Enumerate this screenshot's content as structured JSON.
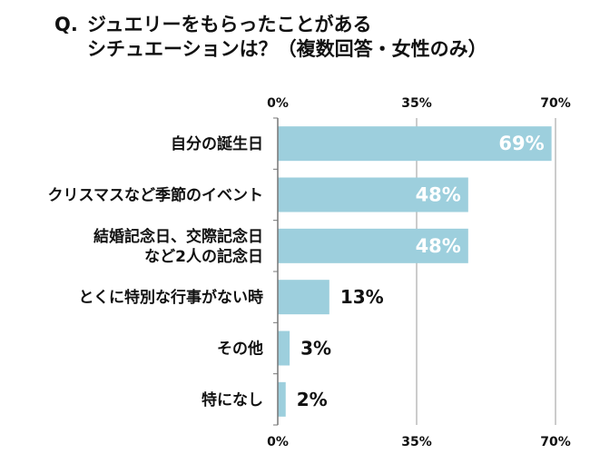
{
  "title": {
    "prefix": "Q.",
    "line1": "ジュエリーをもらったことがある",
    "line2": "シチュエーションは？（複数回答・女性のみ）"
  },
  "colors": {
    "bar": "#9dcfdd",
    "axis": "#777777",
    "grid": "#999999"
  },
  "chart_data": {
    "type": "bar",
    "orientation": "horizontal",
    "categories": [
      [
        "自分の誕生日"
      ],
      [
        "クリスマスなど季節のイベント"
      ],
      [
        "結婚記念日、交際記念日",
        "など2人の記念日"
      ],
      [
        "とくに特別な行事がない時"
      ],
      [
        "その他"
      ],
      [
        "特になし"
      ]
    ],
    "values": [
      69,
      48,
      48,
      13,
      3,
      2
    ],
    "value_labels": [
      "69%",
      "48%",
      "48%",
      "13%",
      "3%",
      "2%"
    ],
    "xlim": [
      0,
      70
    ],
    "ticks": [
      0,
      35,
      70
    ],
    "tick_labels": [
      "0%",
      "35%",
      "70%"
    ],
    "tick_labels_top_and_bottom": true,
    "grid": true,
    "xlabel": "",
    "ylabel": ""
  }
}
